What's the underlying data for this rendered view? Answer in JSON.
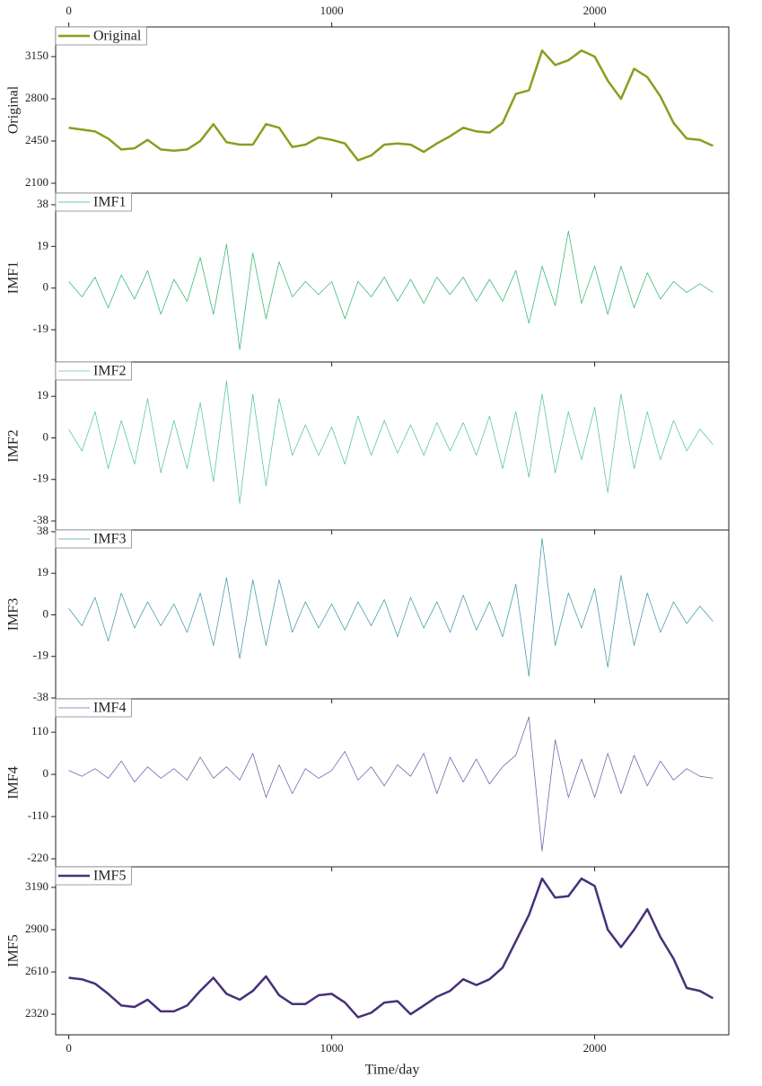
{
  "chart_data": [
    {
      "type": "line",
      "xaxis_labels": "top",
      "xlim": [
        -50,
        2510
      ],
      "xticks": [
        0,
        1000,
        2000
      ],
      "ylabel": "Original",
      "ylim": [
        2018,
        3396
      ],
      "yticks": [
        2100,
        2450,
        2800,
        3150
      ],
      "legend": "upper left",
      "x": [
        0,
        50,
        100,
        150,
        200,
        250,
        300,
        350,
        400,
        450,
        500,
        550,
        600,
        650,
        700,
        750,
        800,
        850,
        900,
        950,
        1000,
        1050,
        1100,
        1150,
        1200,
        1250,
        1300,
        1350,
        1400,
        1450,
        1500,
        1550,
        1600,
        1650,
        1700,
        1750,
        1800,
        1850,
        1900,
        1950,
        2000,
        2050,
        2100,
        2150,
        2200,
        2250,
        2300,
        2350,
        2400,
        2450
      ],
      "series": [
        {
          "name": "Original",
          "color": "#86a01f",
          "width": 2.5,
          "values": [
            2560,
            2545,
            2530,
            2470,
            2380,
            2390,
            2460,
            2380,
            2370,
            2380,
            2450,
            2590,
            2440,
            2420,
            2420,
            2590,
            2560,
            2400,
            2420,
            2480,
            2460,
            2430,
            2290,
            2330,
            2420,
            2430,
            2420,
            2360,
            2430,
            2490,
            2560,
            2530,
            2520,
            2600,
            2840,
            2870,
            3200,
            3080,
            3120,
            3200,
            3150,
            2950,
            2800,
            3050,
            2980,
            2820,
            2600,
            2470,
            2460,
            2410
          ]
        }
      ]
    },
    {
      "type": "line",
      "xlim": [
        -50,
        2510
      ],
      "xticks": [
        0,
        1000,
        2000
      ],
      "ylabel": "IMF1",
      "ylim": [
        -33.7,
        43.3
      ],
      "yticks": [
        -19,
        0,
        19,
        38
      ],
      "legend": "upper left",
      "x": [
        0,
        50,
        100,
        150,
        200,
        250,
        300,
        350,
        400,
        450,
        500,
        550,
        600,
        650,
        700,
        750,
        800,
        850,
        900,
        950,
        1000,
        1050,
        1100,
        1150,
        1200,
        1250,
        1300,
        1350,
        1400,
        1450,
        1500,
        1550,
        1600,
        1650,
        1700,
        1750,
        1800,
        1850,
        1900,
        1950,
        2000,
        2050,
        2100,
        2150,
        2200,
        2250,
        2300,
        2350,
        2400,
        2450
      ],
      "series": [
        {
          "name": "IMF1",
          "color": "#3dbb7a",
          "width": 0.8,
          "values": [
            3,
            -4,
            5,
            -9,
            6,
            -5,
            8,
            -12,
            4,
            -6,
            14,
            -12,
            20,
            -28,
            16,
            -14,
            12,
            -4,
            3,
            -3,
            3,
            -14,
            3,
            -4,
            5,
            -6,
            4,
            -7,
            5,
            -3,
            5,
            -6,
            4,
            -6,
            8,
            -16,
            10,
            -8,
            26,
            -7,
            10,
            -12,
            10,
            -9,
            7,
            -5,
            3,
            -2,
            2,
            -2
          ]
        }
      ]
    },
    {
      "type": "line",
      "xlim": [
        -50,
        2510
      ],
      "xticks": [
        0,
        1000,
        2000
      ],
      "ylabel": "IMF2",
      "ylim": [
        -42.1,
        34.7
      ],
      "yticks": [
        -38,
        -19,
        0,
        19
      ],
      "legend": "upper left",
      "x": [
        0,
        50,
        100,
        150,
        200,
        250,
        300,
        350,
        400,
        450,
        500,
        550,
        600,
        650,
        700,
        750,
        800,
        850,
        900,
        950,
        1000,
        1050,
        1100,
        1150,
        1200,
        1250,
        1300,
        1350,
        1400,
        1450,
        1500,
        1550,
        1600,
        1650,
        1700,
        1750,
        1800,
        1850,
        1900,
        1950,
        2000,
        2050,
        2100,
        2150,
        2200,
        2250,
        2300,
        2350,
        2400,
        2450
      ],
      "series": [
        {
          "name": "IMF2",
          "color": "#5cc5b0",
          "width": 0.8,
          "values": [
            4,
            -6,
            12,
            -14,
            8,
            -12,
            18,
            -16,
            8,
            -14,
            16,
            -20,
            26,
            -30,
            20,
            -22,
            18,
            -8,
            6,
            -8,
            5,
            -12,
            10,
            -8,
            8,
            -7,
            6,
            -8,
            7,
            -6,
            7,
            -8,
            10,
            -14,
            12,
            -18,
            20,
            -16,
            12,
            -10,
            14,
            -25,
            20,
            -14,
            12,
            -10,
            8,
            -6,
            4,
            -3
          ]
        }
      ]
    },
    {
      "type": "line",
      "xlim": [
        -50,
        2510
      ],
      "xticks": [
        0,
        1000,
        2000
      ],
      "ylabel": "IMF3",
      "ylim": [
        -38.4,
        38.8
      ],
      "yticks": [
        -38,
        -19,
        0,
        19,
        38
      ],
      "legend": "upper left",
      "x": [
        0,
        50,
        100,
        150,
        200,
        250,
        300,
        350,
        400,
        450,
        500,
        550,
        600,
        650,
        700,
        750,
        800,
        850,
        900,
        950,
        1000,
        1050,
        1100,
        1150,
        1200,
        1250,
        1300,
        1350,
        1400,
        1450,
        1500,
        1550,
        1600,
        1650,
        1700,
        1750,
        1800,
        1850,
        1900,
        1950,
        2000,
        2050,
        2100,
        2150,
        2200,
        2250,
        2300,
        2350,
        2400,
        2450
      ],
      "series": [
        {
          "name": "IMF3",
          "color": "#4b9fae",
          "width": 0.8,
          "values": [
            3,
            -5,
            8,
            -12,
            10,
            -6,
            6,
            -5,
            5,
            -8,
            10,
            -14,
            17,
            -20,
            16,
            -14,
            16,
            -8,
            6,
            -6,
            5,
            -7,
            6,
            -5,
            7,
            -10,
            8,
            -6,
            6,
            -8,
            9,
            -7,
            6,
            -10,
            14,
            -28,
            35,
            -14,
            10,
            -6,
            12,
            -24,
            18,
            -14,
            10,
            -8,
            6,
            -4,
            4,
            -3
          ]
        }
      ]
    },
    {
      "type": "line",
      "xlim": [
        -50,
        2510
      ],
      "xticks": [
        0,
        1000,
        2000
      ],
      "ylabel": "IMF4",
      "ylim": [
        -241,
        197
      ],
      "yticks": [
        -220,
        -110,
        0,
        110
      ],
      "legend": "upper left",
      "x": [
        0,
        50,
        100,
        150,
        200,
        250,
        300,
        350,
        400,
        450,
        500,
        550,
        600,
        650,
        700,
        750,
        800,
        850,
        900,
        950,
        1000,
        1050,
        1100,
        1150,
        1200,
        1250,
        1300,
        1350,
        1400,
        1450,
        1500,
        1550,
        1600,
        1650,
        1700,
        1750,
        1800,
        1850,
        1900,
        1950,
        2000,
        2050,
        2100,
        2150,
        2200,
        2250,
        2300,
        2350,
        2400,
        2450
      ],
      "series": [
        {
          "name": "IMF4",
          "color": "#6b6bb0",
          "width": 0.8,
          "values": [
            10,
            -5,
            15,
            -10,
            35,
            -20,
            20,
            -10,
            15,
            -15,
            45,
            -10,
            20,
            -15,
            55,
            -60,
            25,
            -50,
            15,
            -10,
            10,
            60,
            -15,
            20,
            -30,
            25,
            -5,
            55,
            -50,
            45,
            -20,
            40,
            -25,
            20,
            50,
            150,
            -200,
            90,
            -60,
            40,
            -60,
            55,
            -50,
            50,
            -30,
            35,
            -15,
            15,
            -5,
            -10
          ]
        }
      ]
    },
    {
      "type": "line",
      "xaxis_labels": "bottom",
      "xlabel": "Time/day",
      "xlim": [
        -50,
        2510
      ],
      "xticks": [
        0,
        1000,
        2000
      ],
      "ylabel": "IMF5",
      "ylim": [
        2179,
        3331
      ],
      "yticks": [
        2320,
        2610,
        2900,
        3190
      ],
      "legend": "upper left",
      "x": [
        0,
        50,
        100,
        150,
        200,
        250,
        300,
        350,
        400,
        450,
        500,
        550,
        600,
        650,
        700,
        750,
        800,
        850,
        900,
        950,
        1000,
        1050,
        1100,
        1150,
        1200,
        1250,
        1300,
        1350,
        1400,
        1450,
        1500,
        1550,
        1600,
        1650,
        1700,
        1750,
        1800,
        1850,
        1900,
        1950,
        2000,
        2050,
        2100,
        2150,
        2200,
        2250,
        2300,
        2350,
        2400,
        2450
      ],
      "series": [
        {
          "name": "IMF5",
          "color": "#47307a",
          "width": 2.5,
          "values": [
            2570,
            2560,
            2530,
            2460,
            2380,
            2370,
            2420,
            2340,
            2340,
            2380,
            2480,
            2570,
            2460,
            2420,
            2480,
            2580,
            2450,
            2390,
            2390,
            2450,
            2460,
            2400,
            2300,
            2330,
            2400,
            2410,
            2320,
            2380,
            2440,
            2480,
            2560,
            2520,
            2560,
            2640,
            2820,
            3000,
            3250,
            3120,
            3130,
            3250,
            3200,
            2900,
            2780,
            2900,
            3040,
            2850,
            2700,
            2500,
            2480,
            2430
          ]
        }
      ]
    }
  ]
}
